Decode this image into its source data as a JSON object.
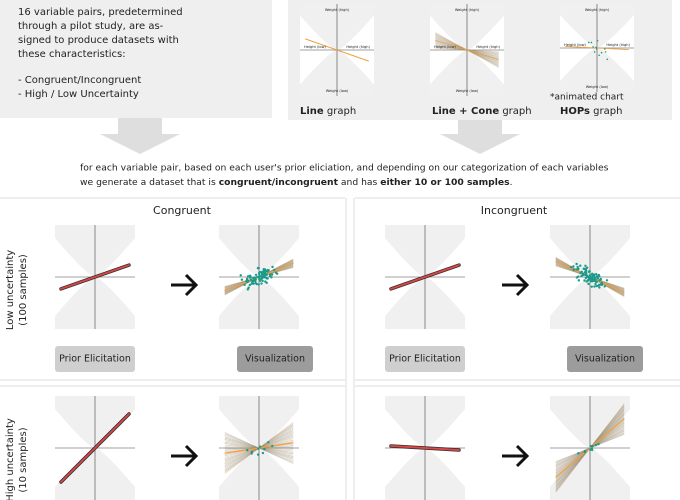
{
  "intro": {
    "lines": [
      "16 variable pairs, predetermined",
      "through a pilot study, are as-",
      "signed to produce datasets with",
      "these characteristics:"
    ],
    "bullets": [
      "- Congruent/Incongruent",
      "- High / Low Uncertainty"
    ]
  },
  "graphs": [
    {
      "bold": "Line",
      "rest": " graph"
    },
    {
      "bold": "Line + Cone",
      "rest": " graph"
    },
    {
      "bold": "HOPs",
      "rest": " graph"
    }
  ],
  "graph_note": "*animated chart",
  "axis_labels": {
    "top": "Weight (high)",
    "bottom": "Weight (low)",
    "left": "Height (low)",
    "right": "Height (high)"
  },
  "description": {
    "line1": "for each variable pair, based on each user's prior eliciation, and depending on our categorization of each variables",
    "line2": [
      "we generate a dataset  that is ",
      "congruent/incongruent",
      " and has ",
      "either 10 or 100 samples",
      "."
    ]
  },
  "columns": [
    "Congruent",
    "Incongruent"
  ],
  "rows": [
    {
      "label": "Low uncertainty",
      "sub": "(100 samples)"
    },
    {
      "label": "High uncertainty",
      "sub": "(10 samples)"
    }
  ],
  "buttons": {
    "prior": "Prior Elicitation",
    "vis": "Visualization"
  }
}
